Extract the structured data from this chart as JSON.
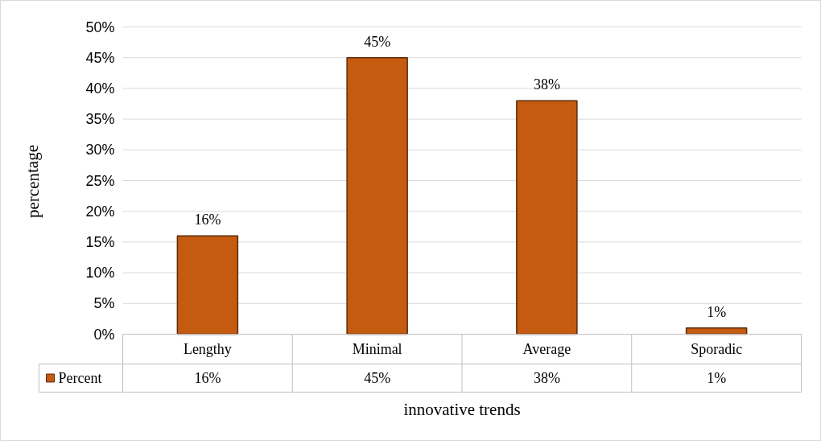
{
  "chart_data": {
    "type": "bar",
    "xlabel": "innovative trends",
    "ylabel": "percentage",
    "categories": [
      "Lengthy",
      "Minimal",
      "Average",
      "Sporadic"
    ],
    "series": [
      {
        "name": "Percent",
        "color": "#c55a11",
        "values": [
          16,
          45,
          38,
          1
        ],
        "value_labels": [
          "16%",
          "45%",
          "38%",
          "1%"
        ]
      }
    ],
    "ylim": [
      0,
      50
    ],
    "yticks": [
      {
        "value": 0,
        "label": "0%"
      },
      {
        "value": 5,
        "label": "5%"
      },
      {
        "value": 10,
        "label": "10%"
      },
      {
        "value": 15,
        "label": "15%"
      },
      {
        "value": 20,
        "label": "20%"
      },
      {
        "value": 25,
        "label": "25%"
      },
      {
        "value": 30,
        "label": "30%"
      },
      {
        "value": 35,
        "label": "35%"
      },
      {
        "value": 40,
        "label": "40%"
      },
      {
        "value": 45,
        "label": "45%"
      },
      {
        "value": 50,
        "label": "50%"
      }
    ],
    "grid": "y",
    "legend": "bottom"
  }
}
